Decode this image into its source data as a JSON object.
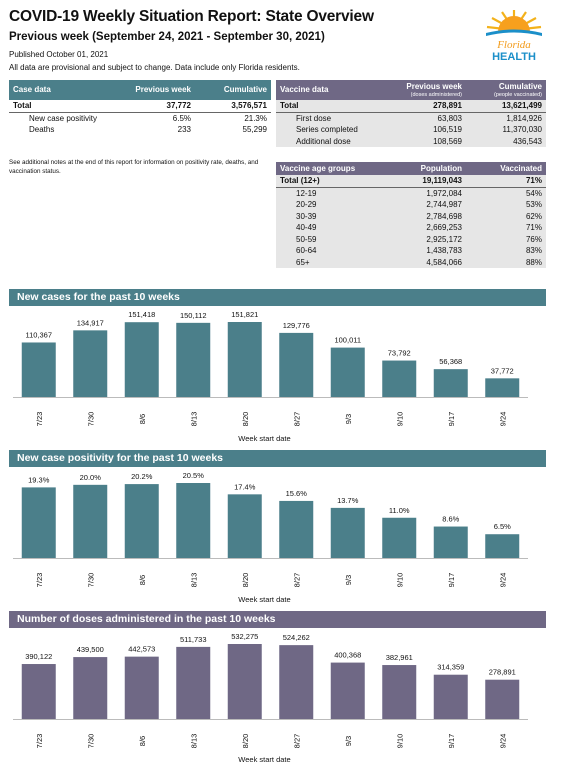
{
  "header": {
    "title": "COVID-19 Weekly Situation Report: State Overview",
    "subtitle": "Previous week (September 24, 2021 - September 30, 2021)",
    "published": "Published October 01, 2021",
    "disclaimer": "All data are provisional and subject to change. Data include only Florida residents.",
    "logo_line1": "Florida",
    "logo_line2": "HEALTH"
  },
  "case_table": {
    "headers": [
      "Case data",
      "Previous week",
      "Cumulative"
    ],
    "rows": [
      {
        "label": "Total",
        "prev": "37,772",
        "cum": "3,576,571"
      },
      {
        "label": "New case positivity",
        "prev": "6.5%",
        "cum": "21.3%"
      },
      {
        "label": "Deaths",
        "prev": "233",
        "cum": "55,299"
      }
    ]
  },
  "note": "See additional notes at the end of this report for information on positivity rate, deaths, and vaccination status.",
  "vaccine_table": {
    "headers": [
      "Vaccine data",
      "Previous week",
      "Cumulative"
    ],
    "subheaders": [
      "",
      "(doses administered)",
      "(people vaccinated)"
    ],
    "rows": [
      {
        "label": "Total",
        "prev": "278,891",
        "cum": "13,621,499"
      },
      {
        "label": "First dose",
        "prev": "63,803",
        "cum": "1,814,926"
      },
      {
        "label": "Series completed",
        "prev": "106,519",
        "cum": "11,370,030"
      },
      {
        "label": "Additional dose",
        "prev": "108,569",
        "cum": "436,543"
      }
    ]
  },
  "age_table": {
    "headers": [
      "Vaccine age groups",
      "Population",
      "Vaccinated"
    ],
    "rows": [
      {
        "label": "Total (12+)",
        "pop": "19,119,043",
        "vac": "71%"
      },
      {
        "label": "12-19",
        "pop": "1,972,084",
        "vac": "54%"
      },
      {
        "label": "20-29",
        "pop": "2,744,987",
        "vac": "53%"
      },
      {
        "label": "30-39",
        "pop": "2,784,698",
        "vac": "62%"
      },
      {
        "label": "40-49",
        "pop": "2,669,253",
        "vac": "71%"
      },
      {
        "label": "50-59",
        "pop": "2,925,172",
        "vac": "76%"
      },
      {
        "label": "60-64",
        "pop": "1,438,783",
        "vac": "83%"
      },
      {
        "label": "65+",
        "pop": "4,584,066",
        "vac": "88%"
      }
    ]
  },
  "colors": {
    "teal": "#4b7f8a",
    "purple": "#6f6885"
  },
  "chart_data": [
    {
      "type": "bar",
      "title": "New cases for the past 10 weeks",
      "xlabel": "Week start date",
      "categories": [
        "7/23",
        "7/30",
        "8/6",
        "8/13",
        "8/20",
        "8/27",
        "9/3",
        "9/10",
        "9/17",
        "9/24"
      ],
      "values": [
        110367,
        134917,
        151418,
        150112,
        151821,
        129776,
        100011,
        73792,
        56368,
        37772
      ],
      "labels": [
        "110,367",
        "134,917",
        "151,418",
        "150,112",
        "151,821",
        "129,776",
        "100,011",
        "73,792",
        "56,368",
        "37,772"
      ],
      "color": "#4b7f8a"
    },
    {
      "type": "bar",
      "title": "New case positivity for the past 10 weeks",
      "xlabel": "Week start date",
      "categories": [
        "7/23",
        "7/30",
        "8/6",
        "8/13",
        "8/20",
        "8/27",
        "9/3",
        "9/10",
        "9/17",
        "9/24"
      ],
      "values": [
        19.3,
        20.0,
        20.2,
        20.5,
        17.4,
        15.6,
        13.7,
        11.0,
        8.6,
        6.5
      ],
      "labels": [
        "19.3%",
        "20.0%",
        "20.2%",
        "20.5%",
        "17.4%",
        "15.6%",
        "13.7%",
        "11.0%",
        "8.6%",
        "6.5%"
      ],
      "color": "#4b7f8a"
    },
    {
      "type": "bar",
      "title": "Number of doses administered in the past 10 weeks",
      "xlabel": "Week start date",
      "categories": [
        "7/23",
        "7/30",
        "8/6",
        "8/13",
        "8/20",
        "8/27",
        "9/3",
        "9/10",
        "9/17",
        "9/24"
      ],
      "values": [
        390122,
        439500,
        442573,
        511733,
        532275,
        524262,
        400368,
        382961,
        314359,
        278891
      ],
      "labels": [
        "390,122",
        "439,500",
        "442,573",
        "511,733",
        "532,275",
        "524,262",
        "400,368",
        "382,961",
        "314,359",
        "278,891"
      ],
      "color": "#6f6885"
    }
  ]
}
